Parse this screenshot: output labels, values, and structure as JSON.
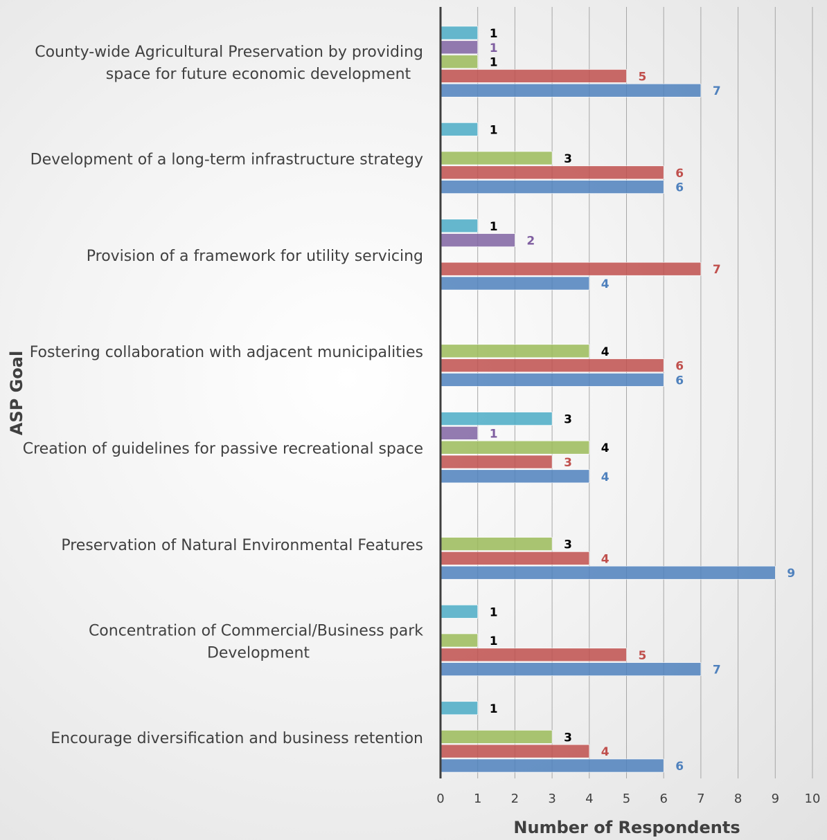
{
  "chart_data": {
    "type": "bar",
    "orientation": "horizontal",
    "xlabel": "Number of Respondents",
    "ylabel": "ASP Goal",
    "xlim": [
      0,
      10
    ],
    "xticks": [
      0,
      1,
      2,
      3,
      4,
      5,
      6,
      7,
      8,
      9,
      10
    ],
    "grid": "vertical",
    "categories": [
      [
        "County-wide Agricultural Preservation by providing",
        "space for future economic development"
      ],
      [
        "Development of a long-term infrastructure strategy"
      ],
      [
        "Provision of a framework for utility servicing"
      ],
      [
        "Fostering collaboration with adjacent municipalities"
      ],
      [
        "Creation of guidelines for passive recreational space"
      ],
      [
        "Preservation of Natural Environmental Features"
      ],
      [
        "Concentration of Commercial/Business park",
        "Development"
      ],
      [
        "Encourage diversification and business retention"
      ]
    ],
    "series": [
      {
        "color": "#4bacc6",
        "label_color": "#000000",
        "values": [
          1,
          1,
          1,
          null,
          3,
          null,
          1,
          1
        ]
      },
      {
        "color": "#8064a2",
        "label_color": "#7f5ea0",
        "values": [
          1,
          null,
          2,
          null,
          1,
          null,
          null,
          null
        ]
      },
      {
        "color": "#9bbb59",
        "label_color": "#000000",
        "values": [
          1,
          3,
          null,
          4,
          4,
          3,
          1,
          3
        ]
      },
      {
        "color": "#c0504d",
        "label_color": "#c0504d",
        "values": [
          5,
          6,
          7,
          6,
          3,
          4,
          5,
          4
        ]
      },
      {
        "color": "#4f81bd",
        "label_color": "#4f81bd",
        "values": [
          7,
          6,
          4,
          6,
          4,
          9,
          7,
          6
        ]
      }
    ]
  }
}
